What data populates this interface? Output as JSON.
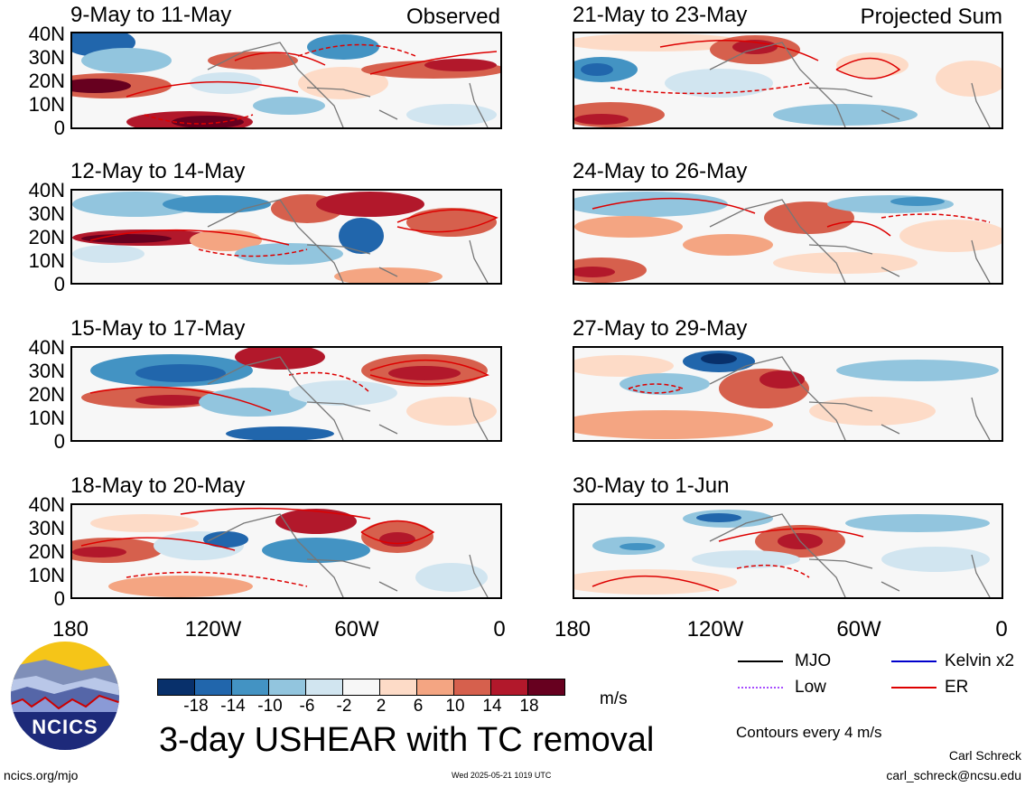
{
  "panels": [
    {
      "title": "9-May to 11-May",
      "corner": "Observed"
    },
    {
      "title": "12-May to 14-May",
      "corner": ""
    },
    {
      "title": "15-May to 17-May",
      "corner": ""
    },
    {
      "title": "18-May to 20-May",
      "corner": ""
    },
    {
      "title": "21-May to 23-May",
      "corner": "Projected Sum"
    },
    {
      "title": "24-May to 26-May",
      "corner": ""
    },
    {
      "title": "27-May to 29-May",
      "corner": ""
    },
    {
      "title": "30-May to 1-Jun",
      "corner": ""
    }
  ],
  "y_ticks": [
    "40N",
    "30N",
    "20N",
    "10N",
    "0"
  ],
  "x_ticks": [
    "180",
    "120W",
    "60W",
    "0"
  ],
  "colorbar": {
    "colors": [
      "#08306b",
      "#2166ac",
      "#4393c3",
      "#92c5de",
      "#d1e5f0",
      "#f7f7f7",
      "#fddbc7",
      "#f4a582",
      "#d6604d",
      "#b2182b",
      "#67001f"
    ],
    "labels": [
      "-18",
      "-14",
      "-10",
      "-6",
      "-2",
      "2",
      "6",
      "10",
      "14",
      "18"
    ],
    "units": "m/s"
  },
  "legend": {
    "items": [
      {
        "label": "MJO",
        "color": "#000000"
      },
      {
        "label": "Kelvin x2",
        "color": "#0000cc"
      },
      {
        "label": "Low",
        "color": "#a64dff"
      },
      {
        "label": "ER",
        "color": "#dd0000"
      }
    ],
    "note": "Contours every 4 m/s"
  },
  "logo_text": "NCICS",
  "main_title": "3-day USHEAR with TC removal",
  "footer": {
    "left": "ncics.org/mjo",
    "center": "Wed 2025-05-21 1019 UTC",
    "author": "Carl Schreck",
    "email": "carl_schreck@ncsu.edu"
  }
}
